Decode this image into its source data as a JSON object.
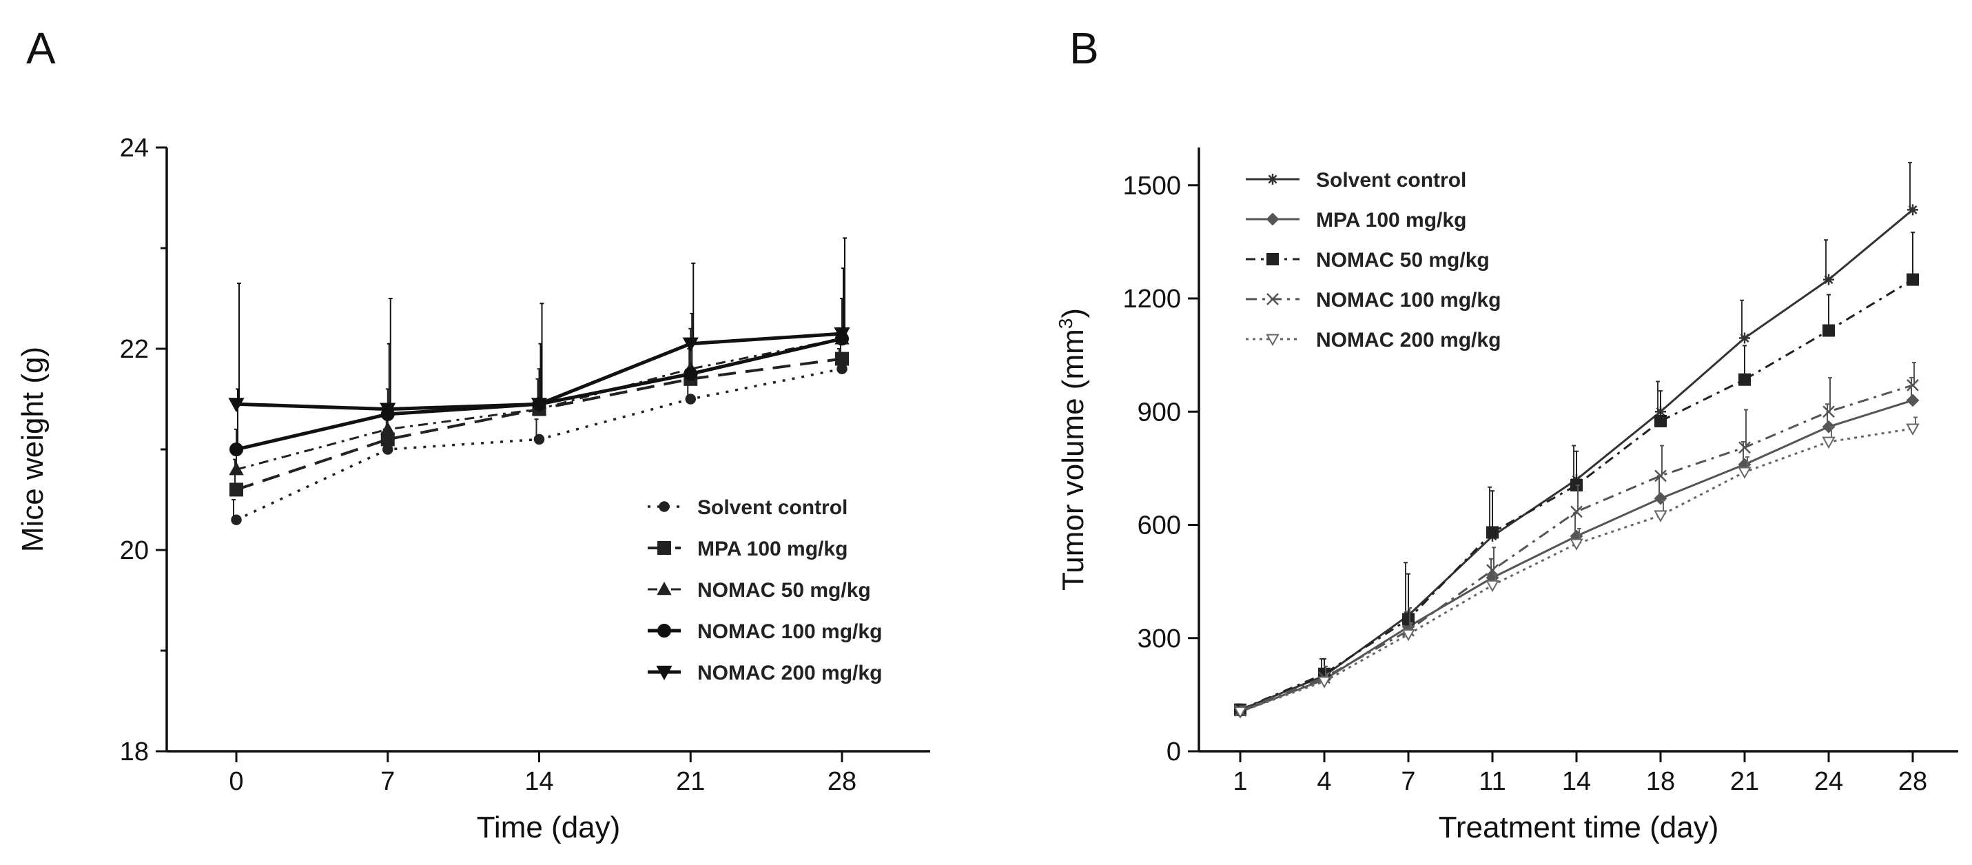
{
  "chart_data": [
    {
      "panel": "A",
      "type": "line",
      "xlabel": "Time (day)",
      "ylabel": "Mice weight (g)",
      "x": [
        0,
        7,
        14,
        21,
        28
      ],
      "x_tick_labels": [
        "0",
        "7",
        "14",
        "21",
        "28"
      ],
      "ylim": [
        18,
        24
      ],
      "y_ticks": [
        18,
        20,
        22,
        24
      ],
      "y_tick_labels": [
        "18",
        "20",
        "22",
        "24"
      ],
      "legend_position": "lower-right",
      "grid": false,
      "series": [
        {
          "name": "Solvent control",
          "values": [
            20.3,
            21.0,
            21.1,
            21.5,
            21.8
          ],
          "err": [
            0.2,
            0.2,
            0.2,
            0.2,
            0.2
          ],
          "marker": "dot",
          "dash": "4 10",
          "width": 3.5,
          "color": "#222222"
        },
        {
          "name": "MPA 100 mg/kg",
          "values": [
            20.6,
            21.1,
            21.4,
            21.7,
            21.9
          ],
          "err": [
            0.3,
            0.3,
            0.3,
            0.3,
            0.3
          ],
          "marker": "square",
          "dash": "26 14",
          "width": 4,
          "color": "#222222"
        },
        {
          "name": "NOMAC 50 mg/kg",
          "values": [
            20.8,
            21.2,
            21.4,
            21.8,
            22.1
          ],
          "err": [
            0.4,
            0.4,
            0.4,
            0.4,
            0.4
          ],
          "marker": "triangle",
          "dash": "14 8 4 8",
          "width": 3,
          "color": "#222222"
        },
        {
          "name": "NOMAC 100 mg/kg",
          "values": [
            21.0,
            21.35,
            21.45,
            21.75,
            22.1
          ],
          "err": [
            0.6,
            0.7,
            0.6,
            0.6,
            0.7
          ],
          "marker": "circle",
          "dash": "",
          "width": 5,
          "color": "#111111"
        },
        {
          "name": "NOMAC 200 mg/kg",
          "values": [
            21.45,
            21.4,
            21.45,
            22.05,
            22.15
          ],
          "err": [
            1.2,
            1.1,
            1.0,
            0.8,
            0.95
          ],
          "marker": "triangle-down",
          "dash": "",
          "width": 5,
          "color": "#111111"
        }
      ]
    },
    {
      "panel": "B",
      "type": "line",
      "xlabel": "Treatment time (day)",
      "ylabel": "Tumor volume (mm",
      "ylabel_superscript": "3",
      "ylabel_suffix": ")",
      "x": [
        1,
        4,
        7,
        11,
        14,
        18,
        21,
        24,
        28
      ],
      "x_tick_labels": [
        "1",
        "4",
        "7",
        "11",
        "14",
        "18",
        "21",
        "24",
        "28"
      ],
      "ylim": [
        0,
        1600
      ],
      "y_ticks": [
        0,
        300,
        600,
        900,
        1200,
        1500
      ],
      "y_tick_labels": [
        "0",
        "300",
        "600",
        "900",
        "1200",
        "1500"
      ],
      "legend_position": "top-left",
      "grid": false,
      "series": [
        {
          "name": "Solvent control",
          "values": [
            110,
            200,
            360,
            570,
            720,
            900,
            1095,
            1250,
            1435
          ],
          "err": [
            15,
            45,
            140,
            130,
            90,
            80,
            100,
            105,
            125
          ],
          "marker": "star",
          "dash": "",
          "width": 3,
          "color": "#333333"
        },
        {
          "name": "MPA 100 mg/kg",
          "values": [
            105,
            190,
            330,
            460,
            570,
            670,
            760,
            860,
            930
          ],
          "err": [
            10,
            20,
            40,
            50,
            60,
            60,
            60,
            60,
            60
          ],
          "marker": "diamond",
          "dash": "",
          "width": 3,
          "color": "#555555"
        },
        {
          "name": "NOMAC 50 mg/kg",
          "values": [
            110,
            205,
            350,
            580,
            705,
            875,
            985,
            1115,
            1250
          ],
          "err": [
            15,
            40,
            120,
            110,
            90,
            80,
            90,
            95,
            125
          ],
          "marker": "square",
          "dash": "14 8 4 8",
          "width": 3,
          "color": "#222222"
        },
        {
          "name": "NOMAC 100 mg/kg",
          "values": [
            108,
            195,
            320,
            480,
            635,
            730,
            805,
            900,
            970
          ],
          "err": [
            12,
            30,
            60,
            60,
            70,
            80,
            100,
            90,
            60
          ],
          "marker": "cross",
          "dash": "16 8 4 8",
          "width": 3,
          "color": "#555555"
        },
        {
          "name": "NOMAC 200 mg/kg",
          "values": [
            105,
            185,
            310,
            440,
            550,
            625,
            740,
            820,
            855
          ],
          "err": [
            10,
            20,
            30,
            30,
            40,
            40,
            40,
            40,
            30
          ],
          "marker": "triangle-down-open",
          "dash": "4 6",
          "width": 3,
          "color": "#666666"
        }
      ]
    }
  ]
}
